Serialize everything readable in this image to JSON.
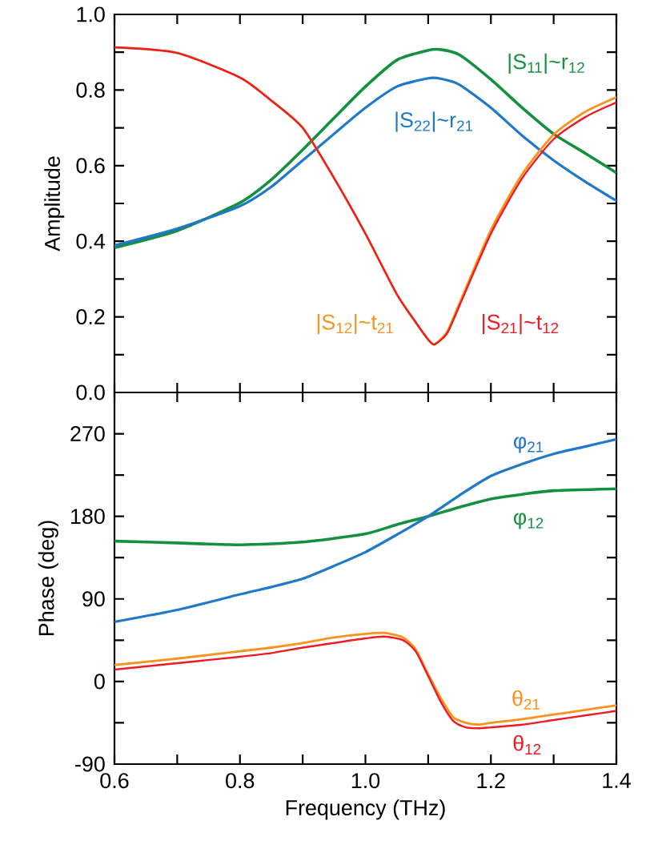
{
  "chart_data": [
    {
      "type": "line",
      "ylabel": "Amplitude",
      "xlim": [
        0.6,
        1.4
      ],
      "ylim": [
        0,
        1
      ],
      "tick_labels": "y",
      "line_style": "solid",
      "xticks": [
        0.6,
        0.7,
        0.8,
        0.9,
        1,
        1.1,
        1.2,
        1.3,
        1.4
      ],
      "yticks": [
        {
          "value": 0,
          "label": "0.0"
        },
        {
          "value": 0.1,
          "label": null
        },
        0.2,
        {
          "value": 0.3,
          "label": null
        },
        0.4,
        {
          "value": 0.5,
          "label": null
        },
        0.6,
        {
          "value": 0.7,
          "label": null
        },
        0.8,
        {
          "value": 0.9,
          "label": null
        },
        {
          "value": 1,
          "label": "1.0"
        }
      ],
      "series": [
        {
          "name": "|S$_{11}$|~r$_{12}$",
          "color": "#159040",
          "x": [
            0.6,
            0.7,
            0.8,
            0.85,
            0.9,
            0.95,
            1.0,
            1.05,
            1.1,
            1.12,
            1.15,
            1.2,
            1.25,
            1.3,
            1.35,
            1.4
          ],
          "values": [
            0.383,
            0.428,
            0.502,
            0.563,
            0.642,
            0.726,
            0.809,
            0.879,
            0.905,
            0.907,
            0.893,
            0.828,
            0.753,
            0.684,
            0.633,
            0.581
          ]
        },
        {
          "name": "|S$_{22}$|~r$_{21}$",
          "color": "#1f78c8",
          "x": [
            0.6,
            0.7,
            0.8,
            0.85,
            0.9,
            0.95,
            1.0,
            1.05,
            1.1,
            1.12,
            1.15,
            1.2,
            1.25,
            1.3,
            1.35,
            1.4
          ],
          "values": [
            0.389,
            0.433,
            0.493,
            0.544,
            0.614,
            0.684,
            0.753,
            0.809,
            0.831,
            0.83,
            0.814,
            0.753,
            0.679,
            0.614,
            0.558,
            0.507
          ]
        },
        {
          "name": "|S$_{12}$|~t$_{21}$",
          "color": "#f7941d",
          "x": [
            0.6,
            0.7,
            0.8,
            0.85,
            0.9,
            0.95,
            1.0,
            1.05,
            1.08,
            1.1,
            1.11,
            1.13,
            1.15,
            1.2,
            1.25,
            1.3,
            1.35,
            1.4
          ],
          "values": [
            0.913,
            0.898,
            0.833,
            0.772,
            0.7,
            0.567,
            0.42,
            0.26,
            0.186,
            0.14,
            0.127,
            0.16,
            0.236,
            0.43,
            0.578,
            0.682,
            0.742,
            0.781
          ]
        },
        {
          "name": "|S$_{21}$|~t$_{12}$",
          "color": "#ed1c24",
          "x": [
            0.6,
            0.7,
            0.8,
            0.85,
            0.9,
            0.95,
            1.0,
            1.05,
            1.08,
            1.1,
            1.11,
            1.13,
            1.15,
            1.2,
            1.25,
            1.3,
            1.35,
            1.4
          ],
          "values": [
            0.913,
            0.898,
            0.833,
            0.772,
            0.7,
            0.567,
            0.42,
            0.26,
            0.186,
            0.14,
            0.127,
            0.156,
            0.23,
            0.42,
            0.567,
            0.67,
            0.728,
            0.767
          ]
        }
      ]
    },
    {
      "type": "line",
      "xlabel": "Frequency (THz)",
      "ylabel": "Phase (deg)",
      "xlim": [
        0.6,
        1.4
      ],
      "ylim": [
        -90,
        315
      ],
      "line_style": "solid",
      "xticks": [
        0.6,
        {
          "value": 0.7,
          "label": null
        },
        0.8,
        {
          "value": 0.9,
          "label": null
        },
        {
          "value": 1.0,
          "label": "1.0"
        },
        {
          "value": 1.1,
          "label": null
        },
        1.2,
        {
          "value": 1.3,
          "label": null
        },
        1.4
      ],
      "yticks": [
        -90,
        {
          "value": -45,
          "label": null
        },
        0,
        {
          "value": 45,
          "label": null
        },
        90,
        {
          "value": 135,
          "label": null
        },
        180,
        {
          "value": 225,
          "label": null
        },
        270
      ],
      "series": [
        {
          "name": "φ$_{12}$",
          "color": "#159040",
          "x": [
            0.6,
            0.7,
            0.8,
            0.9,
            1.0,
            1.05,
            1.1,
            1.15,
            1.2,
            1.25,
            1.3,
            1.4
          ],
          "values": [
            153,
            151,
            149,
            152,
            161,
            171,
            180,
            190,
            199,
            204,
            208,
            210
          ]
        },
        {
          "name": "φ$_{21}$",
          "color": "#1f78c8",
          "x": [
            0.6,
            0.7,
            0.8,
            0.85,
            0.9,
            0.95,
            1.0,
            1.05,
            1.1,
            1.15,
            1.2,
            1.25,
            1.3,
            1.35,
            1.4
          ],
          "values": [
            65,
            78,
            95,
            103,
            112,
            126,
            141,
            160,
            180,
            203,
            224,
            237,
            248,
            256,
            264
          ]
        },
        {
          "name": "θ$_{21}$",
          "color": "#f7941d",
          "x": [
            0.6,
            0.7,
            0.8,
            0.85,
            0.9,
            0.95,
            1.0,
            1.03,
            1.06,
            1.08,
            1.1,
            1.12,
            1.14,
            1.16,
            1.18,
            1.2,
            1.25,
            1.3,
            1.35,
            1.4
          ],
          "values": [
            18,
            25,
            33,
            37,
            42,
            48,
            52,
            53,
            48,
            35,
            8,
            -18,
            -39,
            -45,
            -47,
            -45,
            -41,
            -36,
            -31,
            -26
          ]
        },
        {
          "name": "θ$_{12}$",
          "color": "#ed1c24",
          "x": [
            0.6,
            0.7,
            0.8,
            0.85,
            0.9,
            0.95,
            1.0,
            1.03,
            1.06,
            1.08,
            1.1,
            1.12,
            1.14,
            1.16,
            1.18,
            1.2,
            1.25,
            1.3,
            1.35,
            1.4
          ],
          "values": [
            13,
            20,
            27,
            31,
            37,
            42,
            47,
            49,
            45,
            33,
            6,
            -22,
            -43,
            -50,
            -51,
            -50,
            -47,
            -42,
            -37,
            -32
          ]
        }
      ]
    }
  ]
}
